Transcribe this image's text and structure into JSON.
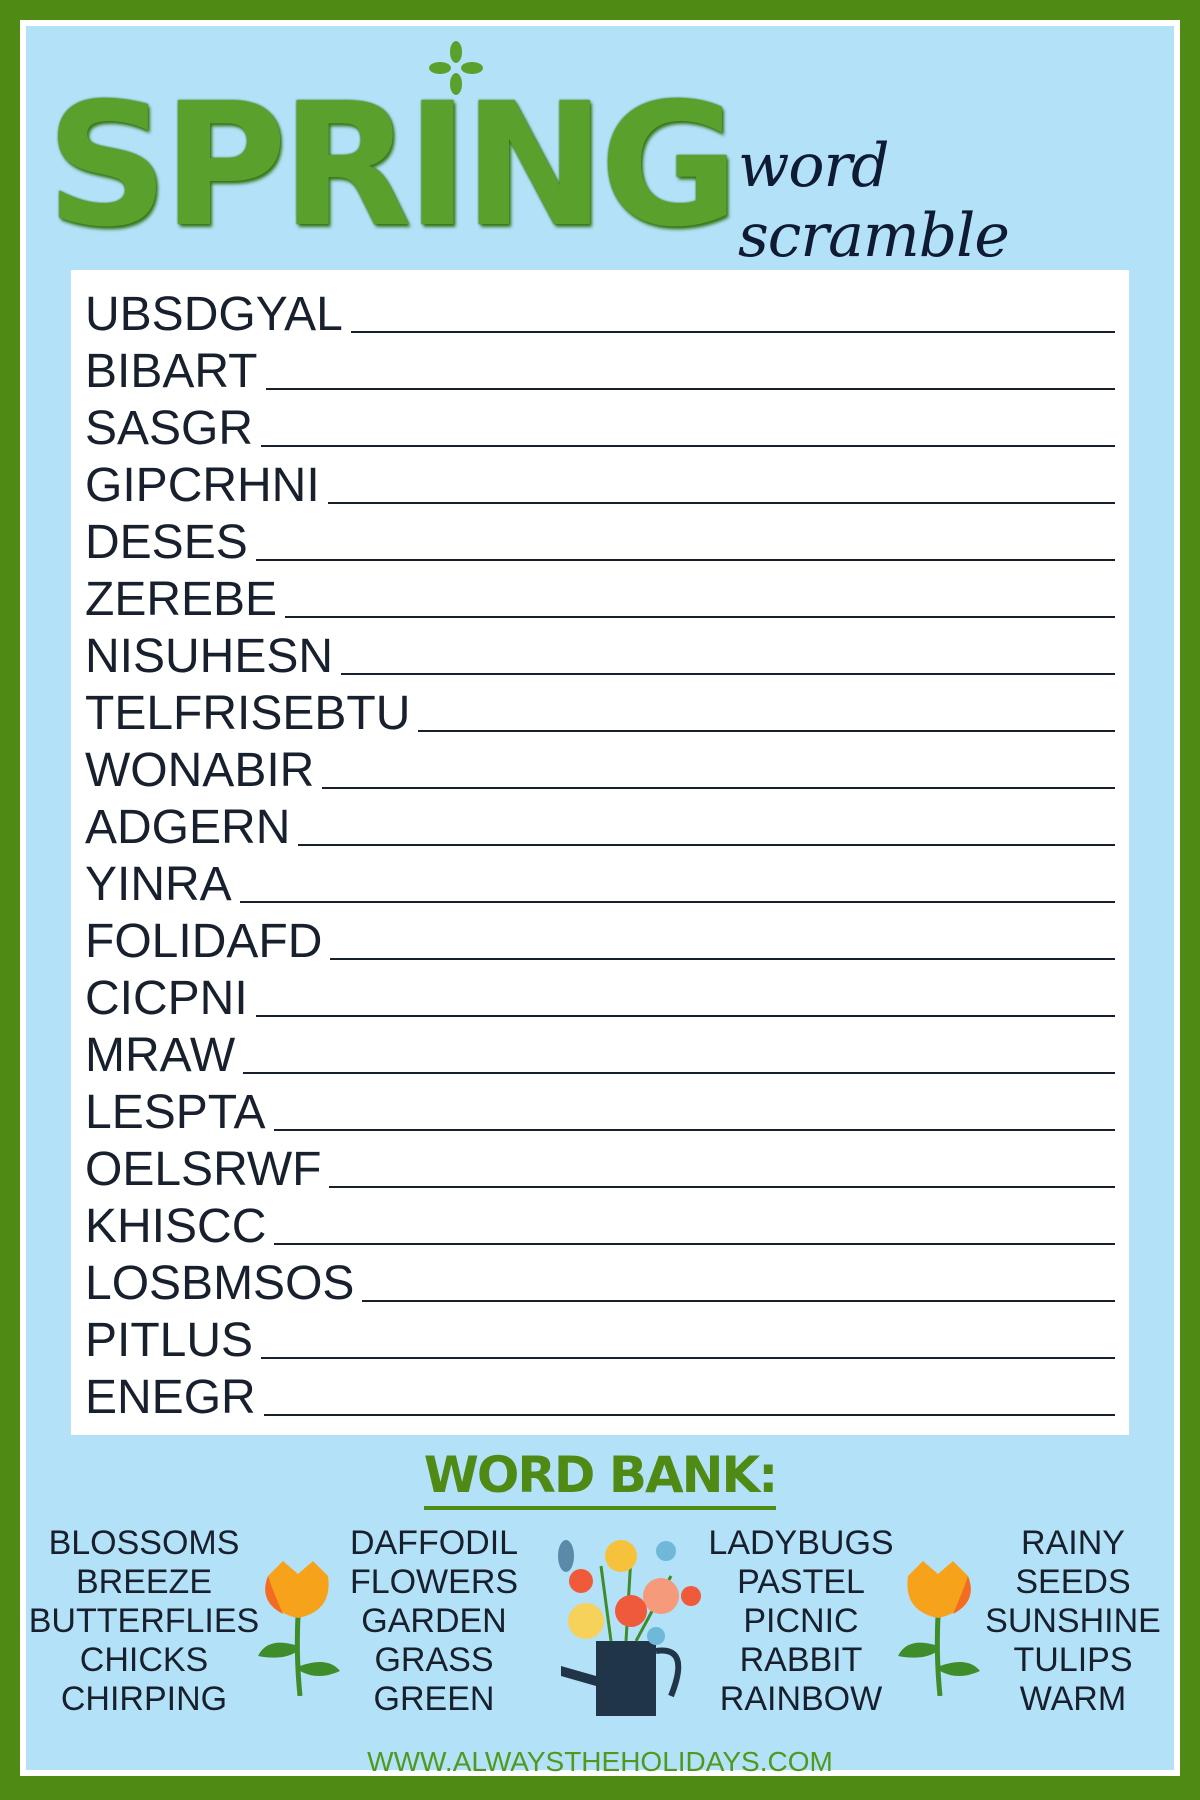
{
  "title": "SPRING",
  "subtitle": "word scramble",
  "scrambled_words": [
    "UBSDGYAL",
    "BIBART",
    "SASGR",
    "GIPCRHNI",
    "DESES",
    "ZEREBE",
    "NISUHESN",
    "TELFRISEBTU",
    "WONABIR",
    "ADGERN",
    "YINRA",
    "FOLIDAFD",
    "CICPNI",
    "MRAW",
    "LESPTA",
    "OELSRWF",
    "KHISCC",
    "LOSBMSOS",
    "PITLUS",
    "ENEGR"
  ],
  "word_bank": {
    "heading": "WORD BANK:",
    "columns": [
      [
        "BLOSSOMS",
        "BREEZE",
        "BUTTERFLIES",
        "CHICKS",
        "CHIRPING"
      ],
      [
        "DAFFODIL",
        "FLOWERS",
        "GARDEN",
        "GRASS",
        "GREEN"
      ],
      [
        "LADYBUGS",
        "PASTEL",
        "PICNIC",
        "RABBIT",
        "RAINBOW"
      ],
      [
        "RAINY",
        "SEEDS",
        "SUNSHINE",
        "TULIPS",
        "WARM"
      ]
    ]
  },
  "footer_url": "WWW.ALWAYSTHEHOLIDAYS.COM",
  "colors": {
    "border": "#4f8a14",
    "background": "#b3e1f8",
    "accent": "#4f8a14"
  }
}
